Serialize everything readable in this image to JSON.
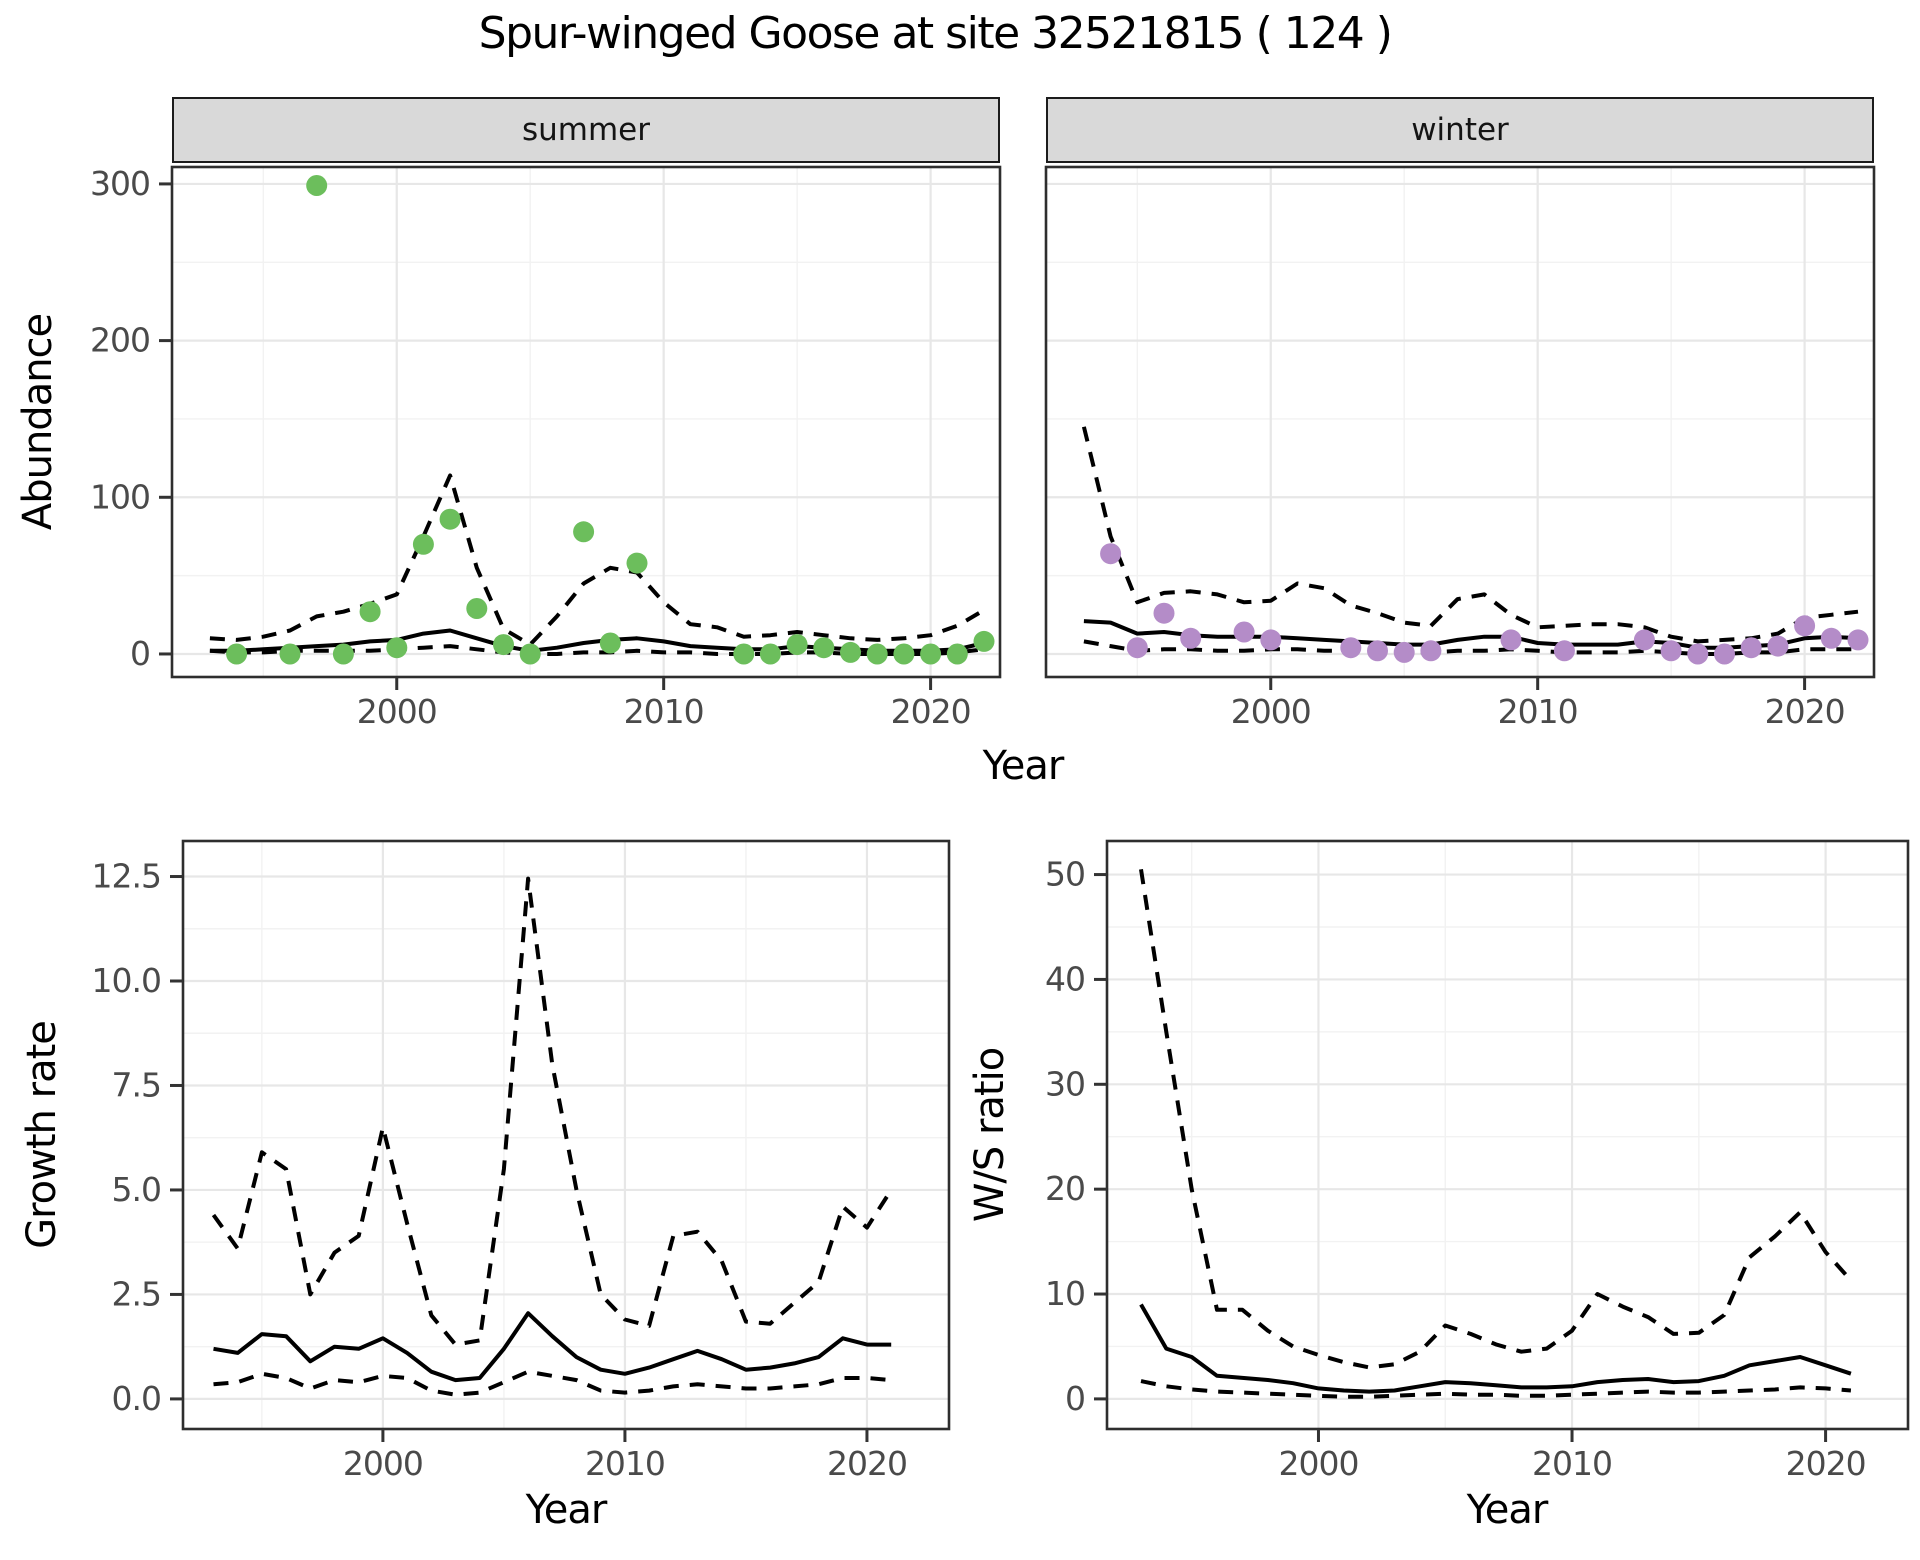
{
  "title": "Spur-winged Goose at site 32521815 ( 124 )",
  "background": "#ffffff",
  "colors": {
    "summer_point": "#6cbe5c",
    "winter_point": "#b48cc8",
    "line": "#000000",
    "strip_bg": "#d9d9d9",
    "grid_major": "#e7e7e7",
    "grid_minor": "#f2f2f2",
    "tick_text": "#4a4a4a",
    "panel_border": "#2e2e2e"
  },
  "chart_data": [
    {
      "type": "scatter",
      "facet": "summer",
      "ylabel": "Abundance",
      "xlabel": "Year",
      "xlim": [
        1991.58,
        2022.6
      ],
      "ylim": [
        -14.7,
        310.8
      ],
      "x_ticks": [
        2000,
        2010,
        2020
      ],
      "x_tick_labels": [
        "2000",
        "2010",
        "2020"
      ],
      "x_minor": [
        1995,
        2005,
        2015
      ],
      "y_ticks": [
        0,
        100,
        200,
        300
      ],
      "y_tick_labels": [
        "0",
        "100",
        "200",
        "300"
      ],
      "y_minor": [
        50,
        150,
        250
      ],
      "grid": true,
      "legend": "none",
      "point_color": "#6cbe5c",
      "points": {
        "years": [
          1994,
          1996,
          1997,
          1998,
          1999,
          2000,
          2001,
          2002,
          2003,
          2004,
          2005,
          2007,
          2008,
          2009,
          2013,
          2014,
          2015,
          2016,
          2017,
          2018,
          2019,
          2020,
          2021,
          2022
        ],
        "values": [
          0,
          0,
          299,
          0,
          27,
          4,
          70,
          86,
          29,
          6,
          0,
          78,
          7,
          58,
          0,
          0,
          6,
          4,
          1,
          0,
          0,
          0,
          0,
          8
        ]
      },
      "fit": {
        "start_year": 1993,
        "end_year": 2022,
        "mean": [
          2,
          2,
          3,
          4,
          5,
          6,
          8,
          9,
          13,
          15,
          10,
          5,
          2,
          4,
          7,
          9,
          10,
          8,
          5,
          4,
          3,
          3,
          5,
          4,
          3,
          2,
          2,
          2,
          3,
          7
        ],
        "upper": [
          10,
          9,
          11,
          15,
          24,
          27,
          32,
          38,
          75,
          114,
          55,
          16,
          6,
          24,
          45,
          55,
          52,
          33,
          19,
          17,
          11,
          12,
          14,
          12,
          10,
          9,
          10,
          12,
          18,
          28
        ],
        "lower": [
          2,
          1,
          1,
          2,
          2,
          2,
          2,
          3,
          4,
          5,
          3,
          1,
          0,
          0,
          1,
          1,
          2,
          1,
          1,
          0,
          0,
          0,
          1,
          1,
          0,
          0,
          0,
          0,
          1,
          3
        ]
      }
    },
    {
      "type": "scatter",
      "facet": "winter",
      "ylabel": "Abundance",
      "xlabel": "Year",
      "xlim": [
        1991.58,
        2022.6
      ],
      "ylim": [
        -14.7,
        310.8
      ],
      "x_ticks": [
        2000,
        2010,
        2020
      ],
      "x_tick_labels": [
        "2000",
        "2010",
        "2020"
      ],
      "x_minor": [
        1995,
        2005,
        2015
      ],
      "y_ticks": [
        0,
        100,
        200,
        300
      ],
      "y_tick_labels": [
        "0",
        "100",
        "200",
        "300"
      ],
      "y_minor": [
        50,
        150,
        250
      ],
      "grid": true,
      "legend": "none",
      "point_color": "#b48cc8",
      "points": {
        "years": [
          1994,
          1995,
          1996,
          1997,
          1999,
          2000,
          2003,
          2004,
          2005,
          2006,
          2009,
          2011,
          2014,
          2015,
          2016,
          2017,
          2018,
          2019,
          2020,
          2021,
          2022
        ],
        "values": [
          64,
          4,
          26,
          10,
          14,
          9,
          4,
          2,
          1,
          2,
          9,
          2,
          9,
          2,
          0,
          0,
          4,
          5,
          18,
          10,
          9
        ]
      },
      "fit": {
        "start_year": 1993,
        "end_year": 2022,
        "mean": [
          21,
          20,
          13,
          14,
          12,
          11,
          11,
          11,
          10,
          9,
          8,
          7,
          6,
          6,
          9,
          11,
          11,
          7,
          6,
          6,
          6,
          8,
          7,
          4,
          4,
          5,
          6,
          10,
          11,
          10
        ],
        "upper": [
          145,
          75,
          33,
          39,
          40,
          38,
          33,
          34,
          45,
          42,
          31,
          26,
          20,
          18,
          35,
          38,
          25,
          17,
          18,
          19,
          19,
          17,
          11,
          8,
          9,
          10,
          13,
          23,
          25,
          27
        ],
        "lower": [
          8,
          5,
          2,
          3,
          3,
          2,
          2,
          3,
          3,
          2,
          2,
          1,
          1,
          1,
          2,
          2,
          3,
          2,
          1,
          1,
          1,
          2,
          1,
          0,
          0,
          1,
          1,
          3,
          3,
          3
        ]
      }
    },
    {
      "type": "line",
      "facet": "",
      "ylabel": "Growth rate",
      "xlabel": "Year",
      "xlim": [
        1991.74,
        2023.39
      ],
      "ylim": [
        -0.72,
        13.35
      ],
      "x_ticks": [
        2000,
        2010,
        2020
      ],
      "x_tick_labels": [
        "2000",
        "2010",
        "2020"
      ],
      "x_minor": [
        1995,
        2005,
        2015
      ],
      "y_ticks": [
        0,
        2.5,
        5,
        7.5,
        10,
        12.5
      ],
      "y_tick_labels": [
        "0.0",
        "2.5",
        "5.0",
        "7.5",
        "10.0",
        "12.5"
      ],
      "y_minor": [
        1.25,
        3.75,
        6.25,
        8.75,
        11.25
      ],
      "grid": true,
      "legend": "none",
      "fit": {
        "start_year": 1993,
        "end_year": 2021,
        "mean": [
          1.2,
          1.1,
          1.55,
          1.5,
          0.9,
          1.25,
          1.2,
          1.45,
          1.1,
          0.65,
          0.45,
          0.5,
          1.2,
          2.05,
          1.5,
          1.0,
          0.7,
          0.6,
          0.75,
          0.95,
          1.15,
          0.95,
          0.7,
          0.75,
          0.85,
          1.0,
          1.45,
          1.3,
          1.3
        ],
        "upper": [
          4.4,
          3.6,
          5.9,
          5.5,
          2.5,
          3.5,
          3.9,
          6.5,
          4.2,
          2.0,
          1.3,
          1.4,
          5.5,
          12.45,
          8.0,
          5.0,
          2.5,
          1.9,
          1.75,
          3.9,
          4.0,
          3.3,
          1.85,
          1.8,
          2.3,
          2.8,
          4.6,
          4.1,
          5.0
        ],
        "lower": [
          0.35,
          0.4,
          0.6,
          0.5,
          0.25,
          0.45,
          0.4,
          0.55,
          0.5,
          0.2,
          0.1,
          0.15,
          0.4,
          0.65,
          0.55,
          0.45,
          0.2,
          0.15,
          0.2,
          0.3,
          0.35,
          0.3,
          0.25,
          0.25,
          0.3,
          0.35,
          0.5,
          0.5,
          0.45
        ]
      }
    },
    {
      "type": "line",
      "facet": "",
      "ylabel": "W/S ratio",
      "xlabel": "Year",
      "xlim": [
        1991.66,
        2023.25
      ],
      "ylim": [
        -2.87,
        53.2
      ],
      "x_ticks": [
        2000,
        2010,
        2020
      ],
      "x_tick_labels": [
        "2000",
        "2010",
        "2020"
      ],
      "x_minor": [
        1995,
        2005,
        2015
      ],
      "y_ticks": [
        0,
        10,
        20,
        30,
        40,
        50
      ],
      "y_tick_labels": [
        "0",
        "10",
        "20",
        "30",
        "40",
        "50"
      ],
      "y_minor": [
        5,
        15,
        25,
        35,
        45
      ],
      "grid": true,
      "legend": "none",
      "fit": {
        "start_year": 1993,
        "end_year": 2021,
        "mean": [
          9.0,
          4.8,
          4.0,
          2.2,
          2.0,
          1.8,
          1.5,
          1.0,
          0.8,
          0.7,
          0.8,
          1.2,
          1.6,
          1.5,
          1.3,
          1.1,
          1.1,
          1.2,
          1.6,
          1.8,
          1.9,
          1.6,
          1.7,
          2.2,
          3.2,
          3.6,
          4.0,
          3.2,
          2.4
        ],
        "upper": [
          50.5,
          35,
          20,
          8.5,
          8.5,
          6.5,
          5.0,
          4.2,
          3.5,
          3.0,
          3.3,
          4.5,
          7.0,
          6.2,
          5.2,
          4.5,
          4.8,
          6.5,
          10.0,
          8.8,
          7.8,
          6.2,
          6.3,
          8.0,
          13.5,
          15.5,
          17.8,
          14.0,
          11.3
        ],
        "lower": [
          1.7,
          1.2,
          0.9,
          0.7,
          0.6,
          0.5,
          0.4,
          0.3,
          0.2,
          0.2,
          0.3,
          0.4,
          0.5,
          0.4,
          0.4,
          0.3,
          0.3,
          0.4,
          0.5,
          0.6,
          0.7,
          0.6,
          0.6,
          0.7,
          0.8,
          0.9,
          1.1,
          1.0,
          0.8
        ]
      }
    }
  ]
}
